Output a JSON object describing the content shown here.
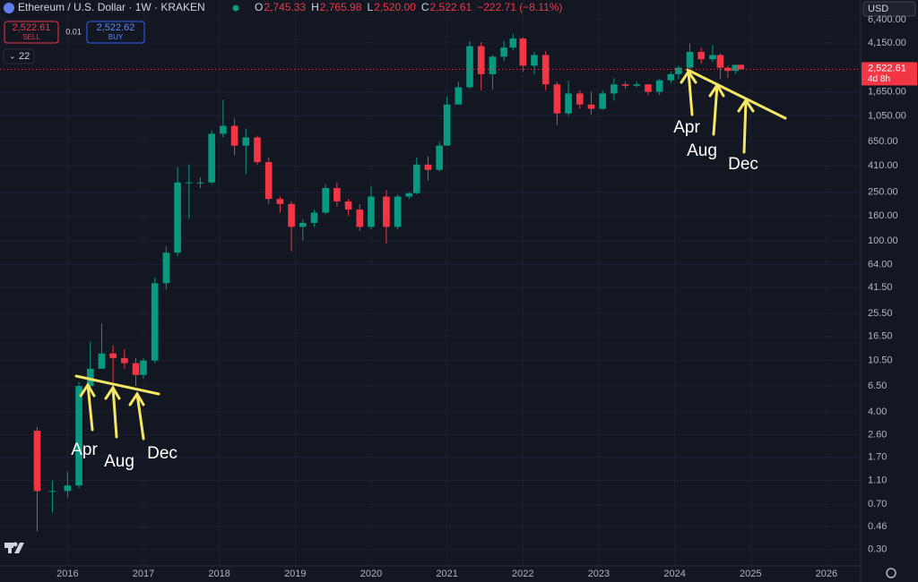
{
  "toolbar": {
    "symbol": "Ethereum / U.S. Dollar · 1W · KRAKEN",
    "ohlc": [
      {
        "key": "O",
        "value": "2,745.33"
      },
      {
        "key": "H",
        "value": "2,765.98"
      },
      {
        "key": "L",
        "value": "2,520.00"
      },
      {
        "key": "C",
        "value": "2,522.61"
      }
    ],
    "change": "−222.71 (−8.11%)",
    "sell_price": "2,522.61",
    "sell": "SELL",
    "spread": "0.01",
    "buy_price": "2,522.62",
    "buy": "BUY",
    "indicators": "22",
    "currency": "USD",
    "countdown": "4d 8h"
  },
  "chart_data": {
    "type": "candlestick",
    "log_scale": true,
    "grid": true,
    "up_color": "#089981",
    "down_color": "#f23645",
    "x": [
      2015.6,
      2015.8,
      2016.0,
      2016.15,
      2016.3,
      2016.45,
      2016.6,
      2016.75,
      2016.9,
      2017.0,
      2017.15,
      2017.3,
      2017.45,
      2017.6,
      2017.75,
      2017.9,
      2018.05,
      2018.2,
      2018.35,
      2018.5,
      2018.65,
      2018.8,
      2018.95,
      2019.1,
      2019.25,
      2019.4,
      2019.55,
      2019.7,
      2019.85,
      2020.0,
      2020.2,
      2020.35,
      2020.5,
      2020.6,
      2020.75,
      2020.9,
      2021.0,
      2021.15,
      2021.3,
      2021.45,
      2021.6,
      2021.75,
      2021.87,
      2022.0,
      2022.15,
      2022.3,
      2022.45,
      2022.6,
      2022.75,
      2022.9,
      2023.05,
      2023.2,
      2023.35,
      2023.5,
      2023.65,
      2023.8,
      2023.95,
      2024.05,
      2024.2,
      2024.35,
      2024.5,
      2024.6,
      2024.7,
      2024.8,
      2024.87
    ],
    "ohlc": [
      [
        2.8,
        3,
        0.42,
        0.9
      ],
      [
        0.9,
        1.1,
        0.6,
        0.9
      ],
      [
        0.9,
        1.3,
        0.8,
        1.0
      ],
      [
        1.0,
        7,
        0.95,
        6.5
      ],
      [
        6.5,
        15,
        6,
        9
      ],
      [
        9,
        21,
        9,
        12
      ],
      [
        12,
        14,
        7,
        11
      ],
      [
        11,
        13,
        9,
        10
      ],
      [
        10,
        11,
        6.5,
        8
      ],
      [
        8,
        11,
        7.5,
        10.5
      ],
      [
        10.5,
        50,
        10,
        45
      ],
      [
        45,
        90,
        40,
        80
      ],
      [
        80,
        400,
        75,
        300
      ],
      [
        300,
        420,
        150,
        300
      ],
      [
        300,
        330,
        270,
        300
      ],
      [
        300,
        800,
        290,
        750
      ],
      [
        750,
        1420,
        700,
        870
      ],
      [
        870,
        1000,
        500,
        600
      ],
      [
        600,
        830,
        350,
        700
      ],
      [
        700,
        720,
        420,
        440
      ],
      [
        440,
        480,
        200,
        220
      ],
      [
        220,
        230,
        170,
        200
      ],
      [
        200,
        210,
        82,
        130
      ],
      [
        130,
        150,
        100,
        140
      ],
      [
        140,
        180,
        130,
        170
      ],
      [
        170,
        290,
        165,
        270
      ],
      [
        270,
        300,
        190,
        210
      ],
      [
        210,
        220,
        160,
        180
      ],
      [
        180,
        200,
        120,
        130
      ],
      [
        130,
        280,
        125,
        230
      ],
      [
        230,
        260,
        95,
        130
      ],
      [
        130,
        240,
        125,
        230
      ],
      [
        230,
        250,
        220,
        245
      ],
      [
        245,
        480,
        240,
        420
      ],
      [
        420,
        490,
        310,
        380
      ],
      [
        380,
        640,
        370,
        600
      ],
      [
        600,
        1500,
        600,
        1300
      ],
      [
        1300,
        2000,
        1300,
        1800
      ],
      [
        1800,
        4300,
        1750,
        3900
      ],
      [
        3900,
        4200,
        1700,
        2300
      ],
      [
        2300,
        3300,
        1730,
        3200
      ],
      [
        3200,
        4300,
        2950,
        3800
      ],
      [
        3800,
        4880,
        3600,
        4500
      ],
      [
        4500,
        4600,
        2400,
        2700
      ],
      [
        2700,
        3500,
        2300,
        3300
      ],
      [
        3300,
        3550,
        1700,
        1900
      ],
      [
        1900,
        2000,
        880,
        1100
      ],
      [
        1100,
        2030,
        1050,
        1600
      ],
      [
        1600,
        1700,
        1200,
        1300
      ],
      [
        1300,
        1660,
        1070,
        1200
      ],
      [
        1200,
        1700,
        1180,
        1600
      ],
      [
        1600,
        2140,
        1400,
        1900
      ],
      [
        1900,
        2000,
        1750,
        1850
      ],
      [
        1850,
        2000,
        1800,
        1900
      ],
      [
        1900,
        1900,
        1550,
        1650
      ],
      [
        1650,
        2100,
        1550,
        2050
      ],
      [
        2050,
        2400,
        1950,
        2300
      ],
      [
        2300,
        2700,
        2100,
        2600
      ],
      [
        2600,
        4090,
        2500,
        3500
      ],
      [
        3500,
        3800,
        2800,
        3050
      ],
      [
        3050,
        3980,
        2900,
        3300
      ],
      [
        3300,
        3400,
        2100,
        2600
      ],
      [
        2600,
        2700,
        2150,
        2450
      ],
      [
        2450,
        2745,
        2310,
        2745
      ],
      [
        2745,
        2766,
        2520,
        2522.61
      ]
    ],
    "last_price": 2522.61,
    "last_price_label": "2,522.61",
    "xlim": [
      2015.11,
      2026.45
    ],
    "xticks": [
      2016,
      2017,
      2018,
      2019,
      2020,
      2021,
      2022,
      2023,
      2024,
      2025,
      2026
    ],
    "ylim": [
      0.22,
      9300
    ],
    "yticks": [
      {
        "value": 6400,
        "label": "6,400.00"
      },
      {
        "value": 4150,
        "label": "4,150.00"
      },
      {
        "value": 1650,
        "label": "1,650.00"
      },
      {
        "value": 1050,
        "label": "1,050.00"
      },
      {
        "value": 650,
        "label": "650.00"
      },
      {
        "value": 410,
        "label": "410.00"
      },
      {
        "value": 250,
        "label": "250.00"
      },
      {
        "value": 160,
        "label": "160.00"
      },
      {
        "value": 100,
        "label": "100.00"
      },
      {
        "value": 64,
        "label": "64.00"
      },
      {
        "value": 41.5,
        "label": "41.50"
      },
      {
        "value": 25.5,
        "label": "25.50"
      },
      {
        "value": 16.5,
        "label": "16.50"
      },
      {
        "value": 10.5,
        "label": "10.50"
      },
      {
        "value": 6.5,
        "label": "6.50"
      },
      {
        "value": 4,
        "label": "4.00"
      },
      {
        "value": 2.6,
        "label": "2.60"
      },
      {
        "value": 1.7,
        "label": "1.70"
      },
      {
        "value": 1.1,
        "label": "1.10"
      },
      {
        "value": 0.7,
        "label": "0.70"
      },
      {
        "value": 0.46,
        "label": "0.46"
      },
      {
        "value": 0.3,
        "label": "0.30"
      }
    ],
    "annotations": [
      {
        "labels": [
          "Apr",
          "Aug",
          "Dec"
        ]
      },
      {
        "labels": [
          "Apr",
          "Aug",
          "Dec"
        ]
      }
    ]
  }
}
